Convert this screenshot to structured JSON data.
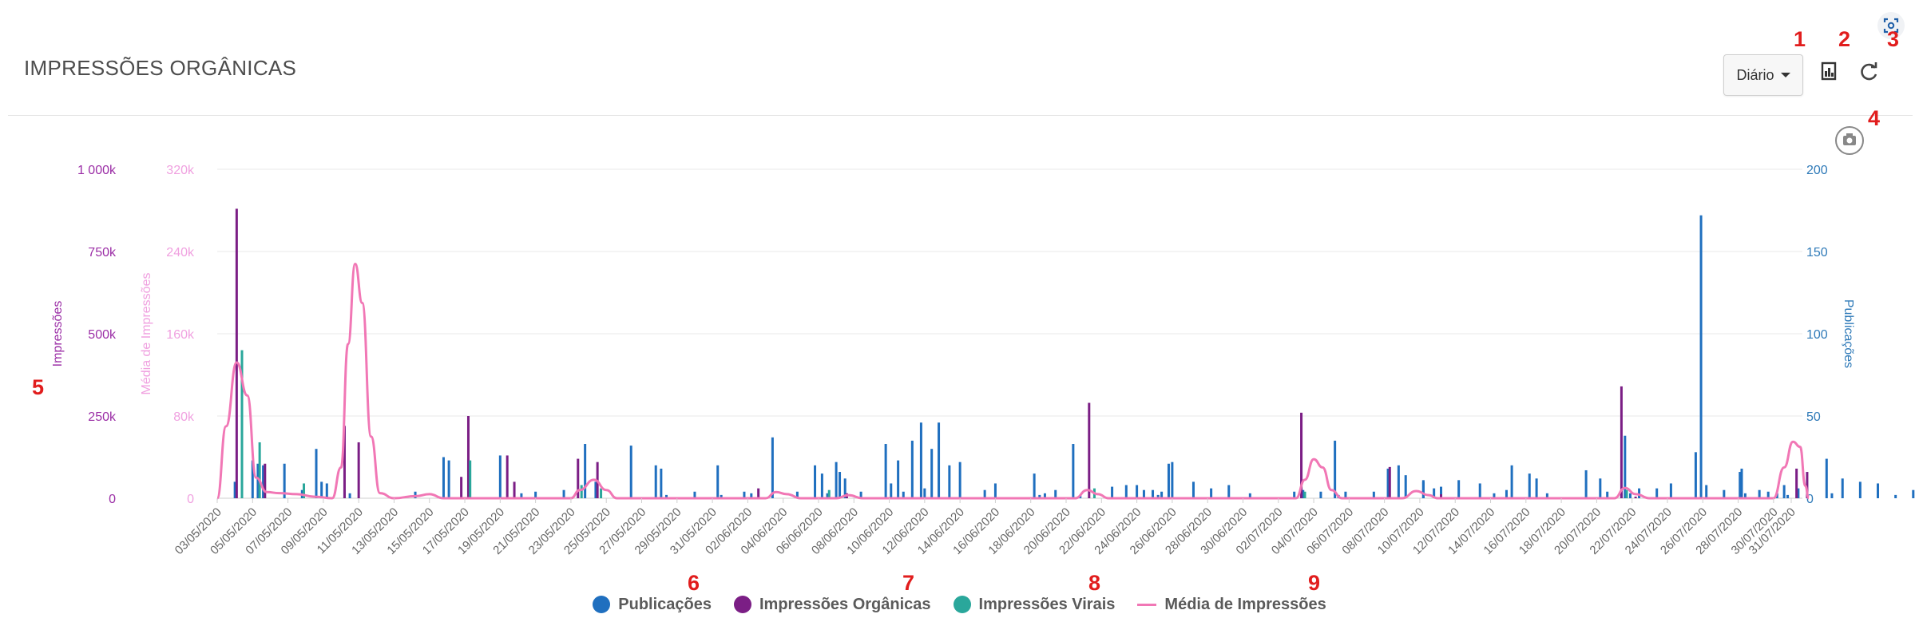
{
  "header": {
    "title": "IMPRESSÕES ORGÂNICAS",
    "period_label": "Diário",
    "export_icon": "chart-export-icon",
    "refresh_icon": "refresh-icon",
    "screenshot_icon": "screenshot-icon",
    "camera_icon": "camera-icon"
  },
  "markers": [
    "1",
    "2",
    "3",
    "4",
    "5",
    "6",
    "7",
    "8",
    "9"
  ],
  "colors": {
    "publicacoes": "#1f6fbf",
    "organicas": "#7b1e85",
    "virais": "#2aa79b",
    "media": "#f177b5",
    "axis_impressoes": "#9b2ea6",
    "axis_media": "#f0a1e0",
    "axis_publicacoes": "#2f7ab8",
    "marker": "#e11d1d"
  },
  "chart_data": {
    "type": "bar",
    "title": "IMPRESSÕES ORGÂNICAS",
    "xlabel": "",
    "axes": {
      "left_outer": {
        "label": "Impressões",
        "ticks": [
          "0",
          "250k",
          "500k",
          "750k",
          "1 000k"
        ],
        "ylim": [
          0,
          1000000
        ]
      },
      "left_inner": {
        "label": "Média de Impressões",
        "ticks": [
          "0",
          "80k",
          "160k",
          "240k",
          "320k"
        ],
        "ylim": [
          0,
          320000
        ]
      },
      "right": {
        "label": "Publicações",
        "ticks": [
          "0",
          "50",
          "100",
          "150",
          "200"
        ],
        "ylim": [
          0,
          200
        ]
      }
    },
    "categories": [
      "03/05/2020",
      "04/05/2020",
      "05/05/2020",
      "06/05/2020",
      "07/05/2020",
      "08/05/2020",
      "09/05/2020",
      "10/05/2020",
      "11/05/2020",
      "12/05/2020",
      "13/05/2020",
      "14/05/2020",
      "15/05/2020",
      "16/05/2020",
      "17/05/2020",
      "18/05/2020",
      "19/05/2020",
      "20/05/2020",
      "21/05/2020",
      "22/05/2020",
      "23/05/2020",
      "24/05/2020",
      "25/05/2020",
      "26/05/2020",
      "27/05/2020",
      "28/05/2020",
      "29/05/2020",
      "30/05/2020",
      "31/05/2020",
      "01/06/2020",
      "02/06/2020",
      "03/06/2020",
      "04/06/2020",
      "05/06/2020",
      "06/06/2020",
      "07/06/2020",
      "08/06/2020",
      "09/06/2020",
      "10/06/2020",
      "11/06/2020",
      "12/06/2020",
      "13/06/2020",
      "14/06/2020",
      "15/06/2020",
      "16/06/2020",
      "17/06/2020",
      "18/06/2020",
      "19/06/2020",
      "20/06/2020",
      "21/06/2020",
      "22/06/2020",
      "23/06/2020",
      "24/06/2020",
      "25/06/2020",
      "26/06/2020",
      "27/06/2020",
      "28/06/2020",
      "29/06/2020",
      "30/06/2020",
      "01/07/2020",
      "02/07/2020",
      "03/07/2020",
      "04/07/2020",
      "05/07/2020",
      "06/07/2020",
      "07/07/2020",
      "08/07/2020",
      "09/07/2020",
      "10/07/2020",
      "11/07/2020",
      "12/07/2020",
      "13/07/2020",
      "14/07/2020",
      "15/07/2020",
      "16/07/2020",
      "17/07/2020",
      "18/07/2020",
      "19/07/2020",
      "20/07/2020",
      "21/07/2020",
      "22/07/2020",
      "23/07/2020",
      "24/07/2020",
      "25/07/2020",
      "26/07/2020",
      "27/07/2020",
      "28/07/2020",
      "29/07/2020",
      "30/07/2020",
      "31/07/2020"
    ],
    "tick_labels": [
      "03/05/2020",
      "05/05/2020",
      "07/05/2020",
      "09/05/2020",
      "11/05/2020",
      "13/05/2020",
      "15/05/2020",
      "17/05/2020",
      "19/05/2020",
      "21/05/2020",
      "23/05/2020",
      "25/05/2020",
      "27/05/2020",
      "29/05/2020",
      "31/05/2020",
      "02/06/2020",
      "04/06/2020",
      "06/06/2020",
      "08/06/2020",
      "10/06/2020",
      "12/06/2020",
      "14/06/2020",
      "16/06/2020",
      "18/06/2020",
      "20/06/2020",
      "22/06/2020",
      "24/06/2020",
      "26/06/2020",
      "28/06/2020",
      "30/06/2020",
      "02/07/2020",
      "04/07/2020",
      "06/07/2020",
      "08/07/2020",
      "10/07/2020",
      "12/07/2020",
      "14/07/2020",
      "16/07/2020",
      "18/07/2020",
      "20/07/2020",
      "22/07/2020",
      "24/07/2020",
      "26/07/2020",
      "28/07/2020",
      "30/07/2020",
      "31/07/2020"
    ],
    "series": [
      {
        "name": "Publicações",
        "axis": "right",
        "type": "bar",
        "values": [
          0,
          10,
          24,
          23,
          6,
          30,
          9,
          2,
          0,
          0,
          3,
          27,
          0,
          24,
          25,
          2,
          31,
          8,
          0,
          0,
          0,
          0,
          32,
          19,
          13,
          4,
          0,
          0,
          0,
          0,
          3,
          0,
          0,
          0,
          0,
          0,
          0,
          0,
          0,
          0,
          0,
          0,
          0,
          0,
          0,
          0,
          0,
          0,
          0,
          0,
          0,
          0,
          0,
          0,
          0,
          0,
          0,
          0,
          0,
          0,
          0,
          0,
          0,
          0,
          0,
          0,
          0,
          0,
          0,
          0,
          0,
          0,
          0,
          0,
          0,
          0,
          0,
          0,
          0,
          0,
          0,
          0,
          0,
          0,
          0,
          0,
          0,
          0,
          0,
          0
        ]
      },
      {
        "name": "Impressões Orgânicas",
        "axis": "left_outer",
        "type": "bar",
        "values": [
          0,
          880000,
          40000,
          30000,
          105000,
          10000,
          20000,
          0,
          0,
          0,
          220000,
          0,
          170000,
          0,
          0,
          0,
          0,
          0,
          0,
          90000,
          0,
          250000,
          10000,
          0,
          0,
          0,
          0,
          0,
          0,
          0,
          0,
          0,
          0,
          0,
          0,
          0,
          0,
          0,
          0,
          0,
          0,
          0,
          0,
          0,
          0,
          0,
          0,
          0,
          0,
          0,
          0,
          0,
          0,
          0,
          0,
          0,
          0,
          0,
          0,
          0,
          0,
          0,
          0,
          0,
          0,
          0,
          0,
          0,
          0,
          0,
          0,
          0,
          0,
          0,
          0,
          0,
          0,
          0,
          0,
          0,
          0,
          0,
          0,
          0,
          0,
          0,
          0,
          0,
          0,
          0
        ]
      },
      {
        "name": "Impressões Virais",
        "axis": "left_outer",
        "type": "bar",
        "values": [
          0,
          450000,
          170000,
          0,
          0,
          45000,
          0,
          0,
          0,
          0,
          0,
          0,
          0,
          0,
          0,
          0,
          0,
          0,
          0,
          0,
          0,
          115000,
          0,
          0,
          0,
          0,
          0,
          0,
          0,
          0,
          0,
          0,
          0,
          0,
          0,
          0,
          0,
          0,
          0,
          0,
          0,
          0,
          0,
          0,
          0,
          0,
          0,
          0,
          0,
          0,
          0,
          0,
          0,
          0,
          0,
          0,
          0,
          0,
          0,
          0,
          0,
          0,
          0,
          0,
          0,
          0,
          0,
          0,
          0,
          0,
          0,
          0,
          0,
          0,
          0,
          0,
          0,
          0,
          0,
          0,
          0,
          0,
          0,
          0,
          0,
          0,
          0,
          0,
          0,
          0
        ]
      },
      {
        "name": "Média de Impressões",
        "axis": "left_inner",
        "type": "line",
        "values": [
          0,
          130000,
          80000,
          5000,
          3000,
          6000,
          2000,
          0,
          0,
          0,
          230000,
          0,
          4000,
          0,
          0,
          0,
          0,
          0,
          0,
          0,
          0,
          18000,
          5000,
          0,
          0,
          0,
          0,
          0,
          0,
          0,
          0,
          0,
          0,
          0,
          0,
          0,
          0,
          0,
          0,
          0,
          0,
          0,
          0,
          0,
          0,
          0,
          0,
          0,
          0,
          0,
          0,
          0,
          0,
          0,
          0,
          0,
          0,
          0,
          0,
          0,
          0,
          0,
          0,
          0,
          0,
          0,
          0,
          0,
          0,
          0,
          0,
          0,
          0,
          0,
          0,
          0,
          0,
          0,
          0,
          0,
          0,
          0,
          0,
          0,
          0,
          0,
          0,
          0,
          0,
          0
        ]
      }
    ],
    "bars": {
      "publicacoes": [
        [
          1,
          10
        ],
        [
          2,
          23
        ],
        [
          2.3,
          21
        ],
        [
          2.6,
          20
        ],
        [
          3.8,
          21
        ],
        [
          4.8,
          5
        ],
        [
          5.6,
          30
        ],
        [
          5.9,
          10
        ],
        [
          6.2,
          9
        ],
        [
          7.2,
          5
        ],
        [
          7.5,
          3
        ],
        [
          11.2,
          4
        ],
        [
          12.8,
          25
        ],
        [
          13.1,
          23
        ],
        [
          14.2,
          24
        ],
        [
          16,
          26
        ],
        [
          17.2,
          3
        ],
        [
          18,
          4
        ],
        [
          19.6,
          5
        ],
        [
          20.8,
          33
        ],
        [
          21.4,
          10
        ],
        [
          23.4,
          32
        ],
        [
          24.8,
          20
        ],
        [
          25.1,
          18
        ],
        [
          25.4,
          2
        ],
        [
          27,
          4
        ],
        [
          28.3,
          20
        ],
        [
          29.8,
          4
        ],
        [
          30.2,
          3
        ],
        [
          31.4,
          37
        ],
        [
          32.8,
          4
        ],
        [
          33.8,
          20
        ],
        [
          34.2,
          15
        ],
        [
          34.5,
          3
        ],
        [
          35.2,
          16
        ],
        [
          35.5,
          12
        ],
        [
          36.4,
          4
        ],
        [
          37.8,
          33
        ],
        [
          38.5,
          23
        ],
        [
          38.8,
          4
        ],
        [
          39.3,
          35
        ],
        [
          40,
          6
        ],
        [
          41.4,
          20
        ],
        [
          42,
          22
        ],
        [
          43.4,
          5
        ],
        [
          44,
          9
        ],
        [
          46.2,
          15
        ],
        [
          46.8,
          3
        ],
        [
          47.4,
          5
        ],
        [
          48.4,
          33
        ],
        [
          48.8,
          2
        ],
        [
          50.6,
          7
        ],
        [
          51.4,
          8
        ],
        [
          52,
          8
        ],
        [
          52.4,
          5
        ],
        [
          53.4,
          4
        ],
        [
          55.2,
          10
        ],
        [
          56.2,
          6
        ],
        [
          57.2,
          8
        ],
        [
          58.4,
          3
        ],
        [
          61.4,
          5
        ],
        [
          62.4,
          4
        ],
        [
          63.4,
          2
        ],
        [
          63.8,
          4
        ],
        [
          65.4,
          4
        ],
        [
          66.2,
          18
        ],
        [
          67.2,
          14
        ],
        [
          68.2,
          10
        ],
        [
          69.2,
          7
        ],
        [
          70.2,
          11
        ],
        [
          71.4,
          9
        ],
        [
          72.2,
          3
        ],
        [
          73.2,
          20
        ],
        [
          74.6,
          12
        ],
        [
          75.2,
          3
        ],
        [
          77.4,
          17
        ],
        [
          78.2,
          12
        ],
        [
          79.4,
          3
        ],
        [
          80.4,
          6
        ],
        [
          81.4,
          6
        ],
        [
          82.2,
          9
        ],
        [
          83.6,
          28
        ],
        [
          83.9,
          172
        ],
        [
          84.2,
          8
        ],
        [
          85.2,
          5
        ],
        [
          86.2,
          18
        ],
        [
          87.2,
          5
        ],
        [
          88.2,
          3
        ],
        [
          88.6,
          8
        ],
        [
          89.4,
          6
        ],
        [
          35,
          22
        ],
        [
          40.8,
          46
        ],
        [
          40.4,
          30
        ],
        [
          28.5,
          2
        ],
        [
          38.1,
          9
        ],
        [
          39.8,
          46
        ],
        [
          46.5,
          2
        ],
        [
          52.9,
          5
        ],
        [
          53.2,
          2
        ],
        [
          53.8,
          21
        ],
        [
          60.9,
          4
        ],
        [
          66.8,
          20
        ],
        [
          63.2,
          35
        ],
        [
          68.8,
          6
        ],
        [
          68.2,
          11
        ],
        [
          72.9,
          5
        ],
        [
          74.2,
          15
        ],
        [
          78.6,
          4
        ],
        [
          79.6,
          38
        ],
        [
          79.9,
          3
        ],
        [
          86.1,
          16
        ],
        [
          86.4,
          3
        ],
        [
          87.7,
          4
        ],
        [
          88.8,
          2
        ],
        [
          91,
          24
        ],
        [
          91.3,
          3
        ],
        [
          91.9,
          12
        ],
        [
          92.9,
          10
        ],
        [
          93.9,
          9
        ],
        [
          94.9,
          2
        ],
        [
          95.9,
          5
        ],
        [
          96.9,
          5
        ],
        [
          97.9,
          2
        ],
        [
          98.9,
          5
        ],
        [
          99.9,
          3
        ],
        [
          54,
          22
        ]
      ]
    }
  },
  "legend": [
    {
      "label": "Publicações",
      "symbol": "dot",
      "color": "#1f6fbf"
    },
    {
      "label": "Impressões Orgânicas",
      "symbol": "dot",
      "color": "#7b1e85"
    },
    {
      "label": "Impressões Virais",
      "symbol": "dot",
      "color": "#2aa79b"
    },
    {
      "label": "Média de Impressões",
      "symbol": "line",
      "color": "#f177b5"
    }
  ]
}
